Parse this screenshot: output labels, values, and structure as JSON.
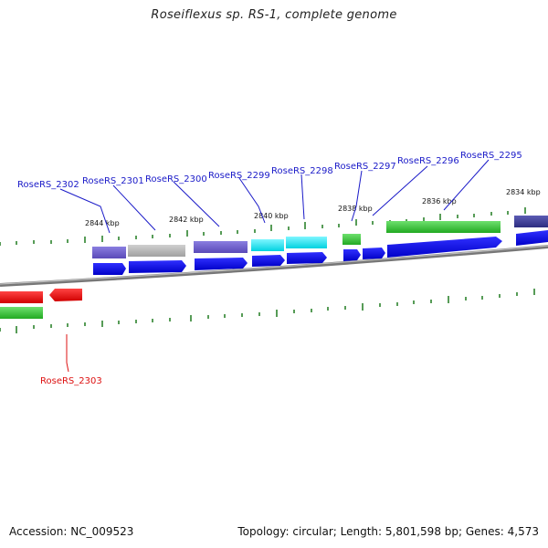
{
  "title": "Roseiflexus sp. RS-1, complete genome",
  "footer": {
    "accession": "Accession: NC_009523",
    "topology": "Topology: circular; Length: 5,801,598 bp; Genes: 4,573"
  },
  "scale_labels": [
    "2844 kbp",
    "2842 kbp",
    "2840 kbp",
    "2838 kbp",
    "2836 kbp",
    "2834 kbp"
  ],
  "gene_labels": [
    {
      "text": "RoseRS_2302",
      "color": "#1a1ac8"
    },
    {
      "text": "RoseRS_2301",
      "color": "#1a1ac8"
    },
    {
      "text": "RoseRS_2300",
      "color": "#1a1ac8"
    },
    {
      "text": "RoseRS_2299",
      "color": "#1a1ac8"
    },
    {
      "text": "RoseRS_2298",
      "color": "#1a1ac8"
    },
    {
      "text": "RoseRS_2297",
      "color": "#1a1ac8"
    },
    {
      "text": "RoseRS_2296",
      "color": "#1a1ac8"
    },
    {
      "text": "RoseRS_2295",
      "color": "#1a1ac8"
    },
    {
      "text": "RoseRS_2303",
      "color": "#dd1111"
    }
  ],
  "colors": {
    "backbone": "#888888",
    "tick": "#1f7a1f",
    "cds_blue": "#0a0ae6",
    "cog_slate": "#6a5acd",
    "cog_gray": "#b4b4b4",
    "cog_cyan": "#00e5ee",
    "cog_green": "#32c832",
    "cog_navy": "#3c3c96",
    "red": "#ee1111"
  }
}
